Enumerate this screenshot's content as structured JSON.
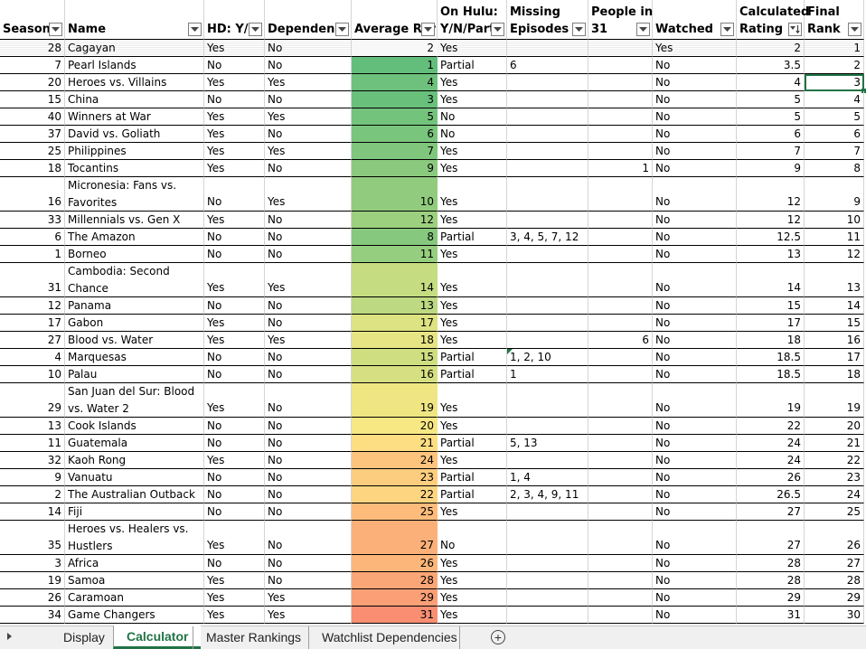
{
  "headers": [
    {
      "key": "season",
      "line1": "",
      "line2": "Season"
    },
    {
      "key": "name",
      "line1": "",
      "line2": "Name"
    },
    {
      "key": "hd",
      "line1": "",
      "line2": "HD: Y/N"
    },
    {
      "key": "dependency",
      "line1": "",
      "line2": "Dependency"
    },
    {
      "key": "avg",
      "line1": "",
      "line2": "Average Rar"
    },
    {
      "key": "hulu",
      "line1": "On Hulu:",
      "line2": "Y/N/Parti"
    },
    {
      "key": "missing",
      "line1": "Missing",
      "line2": "Episodes"
    },
    {
      "key": "people",
      "line1": "People in",
      "line2": "31"
    },
    {
      "key": "watched",
      "line1": "",
      "line2": "Watched"
    },
    {
      "key": "calc",
      "line1": "Calculated",
      "line2": "Rating"
    },
    {
      "key": "final",
      "line1": "Final",
      "line2": "Rank"
    }
  ],
  "rows": [
    {
      "season": "28",
      "name": "Cagayan",
      "hd": "Yes",
      "dep": "No",
      "avg": "2",
      "hulu": "Yes",
      "missing": "",
      "people": "",
      "watched": "Yes",
      "calc": "2",
      "final": "1",
      "color": "#f8f8f8"
    },
    {
      "season": "7",
      "name": "Pearl Islands",
      "hd": "No",
      "dep": "No",
      "avg": "1",
      "hulu": "Partial",
      "missing": "6",
      "people": "",
      "watched": "No",
      "calc": "3.5",
      "final": "2",
      "color": "#63be7b"
    },
    {
      "season": "20",
      "name": "Heroes vs. Villains",
      "hd": "Yes",
      "dep": "Yes",
      "avg": "4",
      "hulu": "Yes",
      "missing": "",
      "people": "",
      "watched": "No",
      "calc": "4",
      "final": "3",
      "color": "#6ec17c"
    },
    {
      "season": "15",
      "name": "China",
      "hd": "No",
      "dep": "No",
      "avg": "3",
      "hulu": "Yes",
      "missing": "",
      "people": "",
      "watched": "No",
      "calc": "5",
      "final": "4",
      "color": "#69c07b"
    },
    {
      "season": "40",
      "name": "Winners at War",
      "hd": "Yes",
      "dep": "Yes",
      "avg": "5",
      "hulu": "No",
      "missing": "",
      "people": "",
      "watched": "No",
      "calc": "5",
      "final": "5",
      "color": "#74c37c"
    },
    {
      "season": "37",
      "name": "David vs. Goliath",
      "hd": "Yes",
      "dep": "No",
      "avg": "6",
      "hulu": "No",
      "missing": "",
      "people": "",
      "watched": "No",
      "calc": "6",
      "final": "6",
      "color": "#7ac57d"
    },
    {
      "season": "25",
      "name": "Philippines",
      "hd": "Yes",
      "dep": "Yes",
      "avg": "7",
      "hulu": "Yes",
      "missing": "",
      "people": "",
      "watched": "No",
      "calc": "7",
      "final": "7",
      "color": "#80c77d"
    },
    {
      "season": "18",
      "name": "Tocantins",
      "hd": "Yes",
      "dep": "No",
      "avg": "9",
      "hulu": "Yes",
      "missing": "",
      "people": "1",
      "watched": "No",
      "calc": "9",
      "final": "8",
      "color": "#8bca7e"
    },
    {
      "season": "16",
      "name": "Micronesia: Fans vs. Favorites",
      "hd": "No",
      "dep": "Yes",
      "avg": "10",
      "hulu": "Yes",
      "missing": "",
      "people": "",
      "watched": "No",
      "calc": "12",
      "final": "9",
      "color": "#91cc7e",
      "tall": true
    },
    {
      "season": "33",
      "name": "Millennials vs. Gen X",
      "hd": "Yes",
      "dep": "No",
      "avg": "12",
      "hulu": "Yes",
      "missing": "",
      "people": "",
      "watched": "No",
      "calc": "12",
      "final": "10",
      "color": "#9cd07f"
    },
    {
      "season": "6",
      "name": "The Amazon",
      "hd": "No",
      "dep": "No",
      "avg": "8",
      "hulu": "Partial",
      "missing": "3, 4, 5, 7, 12",
      "people": "",
      "watched": "No",
      "calc": "12.5",
      "final": "11",
      "color": "#86c87d"
    },
    {
      "season": "1",
      "name": "Borneo",
      "hd": "No",
      "dep": "No",
      "avg": "11",
      "hulu": "Yes",
      "missing": "",
      "people": "",
      "watched": "No",
      "calc": "13",
      "final": "12",
      "color": "#96ce7f"
    },
    {
      "season": "31",
      "name": "Cambodia: Second Chance",
      "hd": "Yes",
      "dep": "Yes",
      "avg": "14",
      "hulu": "Yes",
      "missing": "",
      "people": "",
      "watched": "No",
      "calc": "14",
      "final": "13",
      "color": "#c6dc80",
      "tall": true
    },
    {
      "season": "12",
      "name": "Panama",
      "hd": "No",
      "dep": "No",
      "avg": "13",
      "hulu": "Yes",
      "missing": "",
      "people": "",
      "watched": "No",
      "calc": "15",
      "final": "14",
      "color": "#bdd981"
    },
    {
      "season": "17",
      "name": "Gabon",
      "hd": "Yes",
      "dep": "No",
      "avg": "17",
      "hulu": "Yes",
      "missing": "",
      "people": "",
      "watched": "No",
      "calc": "17",
      "final": "15",
      "color": "#dde282"
    },
    {
      "season": "27",
      "name": "Blood vs. Water",
      "hd": "Yes",
      "dep": "Yes",
      "avg": "18",
      "hulu": "Yes",
      "missing": "",
      "people": "6",
      "watched": "No",
      "calc": "18",
      "final": "16",
      "color": "#e6e483"
    },
    {
      "season": "4",
      "name": "Marquesas",
      "hd": "No",
      "dep": "No",
      "avg": "15",
      "hulu": "Partial",
      "missing": "1, 2, 10",
      "people": "",
      "watched": "No",
      "calc": "18.5",
      "final": "17",
      "color": "#cfde81",
      "comment": true
    },
    {
      "season": "10",
      "name": "Palau",
      "hd": "No",
      "dep": "No",
      "avg": "16",
      "hulu": "Partial",
      "missing": "1",
      "people": "",
      "watched": "No",
      "calc": "18.5",
      "final": "18",
      "color": "#d6e082"
    },
    {
      "season": "29",
      "name": "San Juan del Sur: Blood vs. Water 2",
      "hd": "Yes",
      "dep": "No",
      "avg": "19",
      "hulu": "Yes",
      "missing": "",
      "people": "",
      "watched": "No",
      "calc": "19",
      "final": "19",
      "color": "#efe683",
      "tall": true
    },
    {
      "season": "13",
      "name": "Cook Islands",
      "hd": "No",
      "dep": "No",
      "avg": "20",
      "hulu": "Yes",
      "missing": "",
      "people": "",
      "watched": "No",
      "calc": "22",
      "final": "20",
      "color": "#f8e884"
    },
    {
      "season": "11",
      "name": "Guatemala",
      "hd": "No",
      "dep": "No",
      "avg": "21",
      "hulu": "Partial",
      "missing": "5, 13",
      "people": "",
      "watched": "No",
      "calc": "24",
      "final": "21",
      "color": "#fede82"
    },
    {
      "season": "32",
      "name": "Kaoh Rong",
      "hd": "Yes",
      "dep": "No",
      "avg": "24",
      "hulu": "Yes",
      "missing": "",
      "people": "",
      "watched": "No",
      "calc": "24",
      "final": "22",
      "color": "#fdc47d"
    },
    {
      "season": "9",
      "name": "Vanuatu",
      "hd": "No",
      "dep": "No",
      "avg": "23",
      "hulu": "Partial",
      "missing": "1, 4",
      "people": "",
      "watched": "No",
      "calc": "26",
      "final": "23",
      "color": "#fdcd7f"
    },
    {
      "season": "2",
      "name": "The Australian Outback",
      "hd": "No",
      "dep": "No",
      "avg": "22",
      "hulu": "Partial",
      "missing": "2, 3, 4, 9, 11",
      "people": "",
      "watched": "No",
      "calc": "26.5",
      "final": "24",
      "color": "#fdd581"
    },
    {
      "season": "14",
      "name": "Fiji",
      "hd": "No",
      "dep": "No",
      "avg": "25",
      "hulu": "Yes",
      "missing": "",
      "people": "",
      "watched": "No",
      "calc": "27",
      "final": "25",
      "color": "#fdbc7b"
    },
    {
      "season": "35",
      "name": "Heroes vs. Healers vs. Hustlers",
      "hd": "Yes",
      "dep": "No",
      "avg": "27",
      "hulu": "No",
      "missing": "",
      "people": "",
      "watched": "No",
      "calc": "27",
      "final": "26",
      "color": "#fcb079",
      "tall": true
    },
    {
      "season": "3",
      "name": "Africa",
      "hd": "No",
      "dep": "No",
      "avg": "26",
      "hulu": "Yes",
      "missing": "",
      "people": "",
      "watched": "No",
      "calc": "28",
      "final": "27",
      "color": "#fcb67a"
    },
    {
      "season": "19",
      "name": "Samoa",
      "hd": "Yes",
      "dep": "No",
      "avg": "28",
      "hulu": "Yes",
      "missing": "",
      "people": "",
      "watched": "No",
      "calc": "28",
      "final": "28",
      "color": "#fba677"
    },
    {
      "season": "26",
      "name": "Caramoan",
      "hd": "Yes",
      "dep": "Yes",
      "avg": "29",
      "hulu": "Yes",
      "missing": "",
      "people": "",
      "watched": "No",
      "calc": "29",
      "final": "29",
      "color": "#fb9f76"
    },
    {
      "season": "34",
      "name": "Game Changers",
      "hd": "Yes",
      "dep": "Yes",
      "avg": "31",
      "hulu": "Yes",
      "missing": "",
      "people": "",
      "watched": "No",
      "calc": "31",
      "final": "30",
      "color": "#f98e73"
    }
  ],
  "tabs": [
    "Display",
    "Calculator",
    "Master Rankings",
    "Watchlist Dependencies"
  ],
  "active_tab": "Calculator",
  "add_sheet_label": "+",
  "accent": "#217346"
}
